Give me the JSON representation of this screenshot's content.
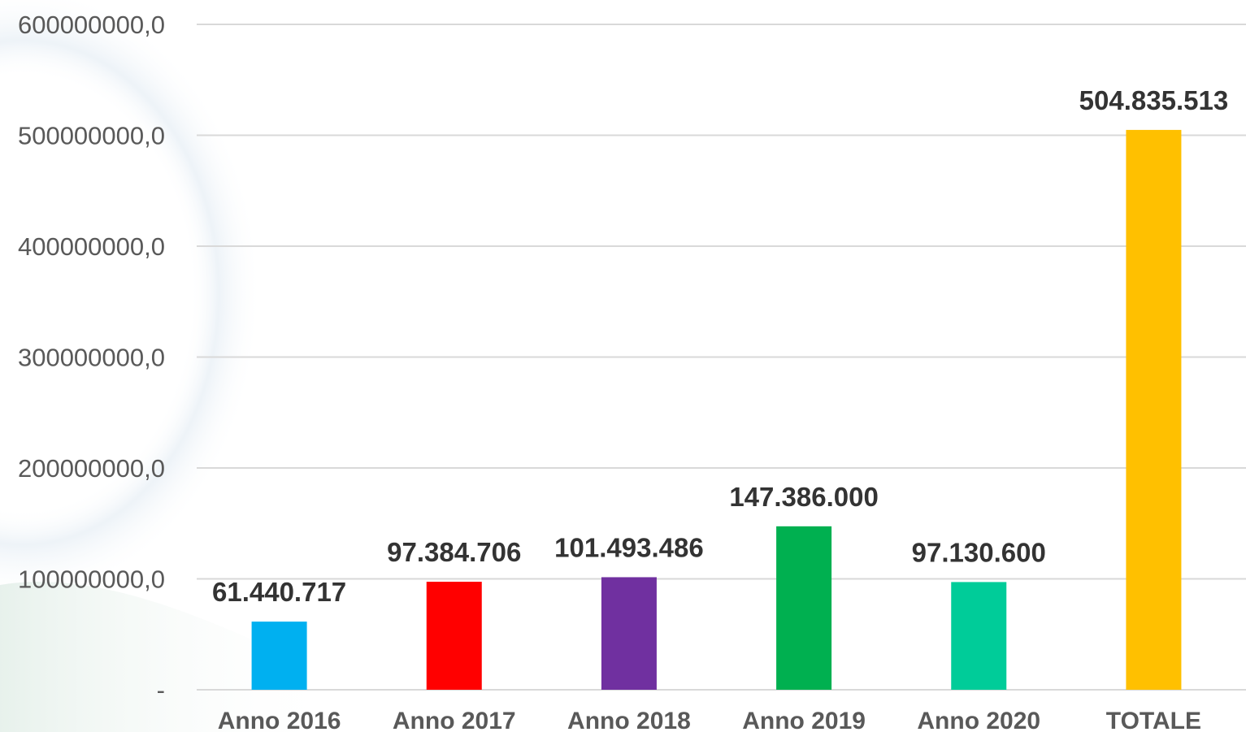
{
  "chart_data": {
    "type": "bar",
    "categories": [
      "Anno 2016",
      "Anno 2017",
      "Anno 2018",
      "Anno 2019",
      "Anno 2020",
      "TOTALE"
    ],
    "values": [
      61440717,
      97384706,
      101493486,
      147386000,
      97130600,
      504835513
    ],
    "data_labels": [
      "61.440.717",
      "97.384.706",
      "101.493.486",
      "147.386.000",
      "97.130.600",
      "504.835.513"
    ],
    "bar_colors": [
      "#00b0f0",
      "#ff0000",
      "#7030a0",
      "#00b050",
      "#00cc99",
      "#ffc000"
    ],
    "ylim": [
      0,
      600000000
    ],
    "yticks": [
      0,
      100000000,
      200000000,
      300000000,
      400000000,
      500000000,
      600000000
    ],
    "ytick_labels": [
      "-",
      "100000000,0",
      "200000000,0",
      "300000000,0",
      "400000000,0",
      "500000000,0",
      "600000000,0"
    ],
    "title": "",
    "xlabel": "",
    "ylabel": "",
    "grid": true,
    "legend": "none"
  }
}
